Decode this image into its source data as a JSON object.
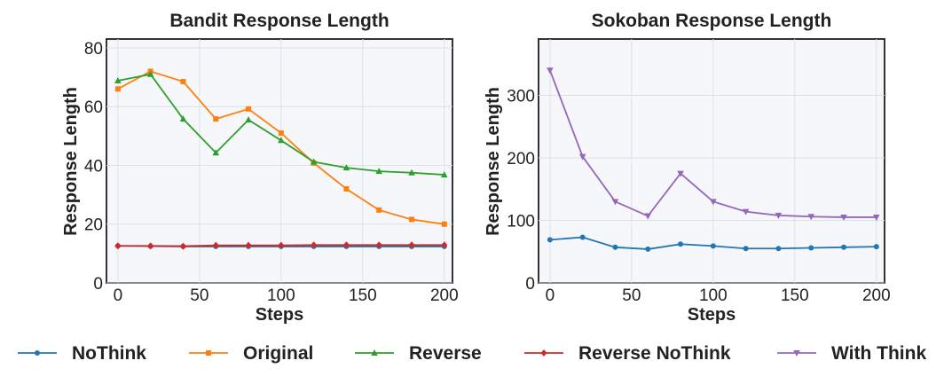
{
  "chart_data": [
    {
      "type": "line",
      "title": "Bandit Response Length",
      "xlabel": "Steps",
      "ylabel": "Response Length",
      "xlim": [
        -7,
        205
      ],
      "ylim": [
        0,
        83
      ],
      "xticks": [
        0,
        50,
        100,
        150,
        200
      ],
      "yticks": [
        0,
        20,
        40,
        60,
        80
      ],
      "x": [
        0,
        20,
        40,
        60,
        80,
        100,
        120,
        140,
        160,
        180,
        200
      ],
      "series": [
        {
          "name": "NoThink",
          "values": [
            12.6,
            12.5,
            12.4,
            12.4,
            12.4,
            12.4,
            12.4,
            12.4,
            12.4,
            12.4,
            12.4
          ]
        },
        {
          "name": "Original",
          "values": [
            66,
            72,
            68.5,
            55.8,
            59.2,
            51,
            40.8,
            32,
            24.8,
            21.6,
            20
          ]
        },
        {
          "name": "Reverse",
          "values": [
            68.8,
            71,
            55.8,
            44.3,
            55.5,
            48.5,
            41.2,
            39.2,
            38,
            37.5,
            36.8
          ]
        },
        {
          "name": "Reverse NoThink",
          "values": [
            12.6,
            12.6,
            12.5,
            12.8,
            12.8,
            12.8,
            12.9,
            12.9,
            12.9,
            12.9,
            12.9
          ]
        }
      ]
    },
    {
      "type": "line",
      "title": "Sokoban Response Length",
      "xlabel": "Steps",
      "ylabel": "Response Length",
      "xlim": [
        -7,
        205
      ],
      "ylim": [
        0,
        390
      ],
      "xticks": [
        0,
        50,
        100,
        150,
        200
      ],
      "yticks": [
        0,
        100,
        200,
        300
      ],
      "x": [
        0,
        20,
        40,
        60,
        80,
        100,
        120,
        140,
        160,
        180,
        200
      ],
      "series": [
        {
          "name": "NoThink",
          "values": [
            69,
            73,
            57,
            54,
            62,
            59,
            55,
            55,
            56,
            57,
            58
          ]
        },
        {
          "name": "With Think",
          "values": [
            340,
            202,
            130,
            107,
            175,
            130,
            114,
            108,
            106,
            105,
            105
          ]
        }
      ]
    }
  ],
  "legend": {
    "placement": "bottom",
    "items": [
      {
        "label": "NoThink",
        "color": "#1f77b4",
        "marker": "circle"
      },
      {
        "label": "Original",
        "color": "#ff7f0e",
        "marker": "square"
      },
      {
        "label": "Reverse",
        "color": "#2ca02c",
        "marker": "triangle-up"
      },
      {
        "label": "Reverse NoThink",
        "color": "#d62728",
        "marker": "diamond"
      },
      {
        "label": "With Think",
        "color": "#9467bd",
        "marker": "triangle-down"
      }
    ]
  }
}
